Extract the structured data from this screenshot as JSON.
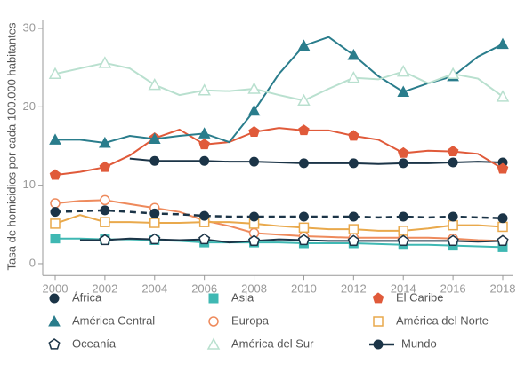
{
  "chart_data": {
    "type": "line",
    "y_label": "Tasa de homicidios por cada 100.000 habitantes",
    "x": [
      2000,
      2001,
      2002,
      2003,
      2004,
      2005,
      2006,
      2007,
      2008,
      2009,
      2010,
      2011,
      2012,
      2013,
      2014,
      2015,
      2016,
      2017,
      2018
    ],
    "xlim": [
      2000,
      2018
    ],
    "xticks": [
      2000,
      2002,
      2004,
      2006,
      2008,
      2010,
      2012,
      2014,
      2016,
      2018
    ],
    "ylim": [
      -1.5,
      30.5
    ],
    "yticks": [
      0,
      10,
      20,
      30
    ],
    "series": [
      {
        "name": "África",
        "color": "#1b3447",
        "marker": "circle",
        "filled": true,
        "values": [
          null,
          null,
          null,
          13.4,
          13.1,
          13.1,
          13.1,
          13.0,
          13.0,
          12.9,
          12.8,
          12.8,
          12.8,
          12.7,
          12.8,
          12.8,
          12.9,
          13.0,
          12.9
        ]
      },
      {
        "name": "Asia",
        "color": "#3fb8b3",
        "marker": "square",
        "filled": true,
        "values": [
          3.2,
          3.2,
          3.1,
          3.1,
          3.0,
          2.9,
          2.7,
          2.7,
          2.7,
          2.7,
          2.6,
          2.6,
          2.6,
          2.5,
          2.4,
          2.4,
          2.3,
          2.2,
          2.1
        ]
      },
      {
        "name": "El Caribe",
        "color": "#e05a3a",
        "marker": "pentagon",
        "filled": true,
        "values": [
          11.3,
          11.7,
          12.3,
          13.8,
          16.0,
          17.1,
          15.2,
          15.5,
          16.8,
          17.3,
          17.0,
          17.0,
          16.3,
          15.8,
          14.1,
          14.4,
          14.3,
          14.0,
          12.1
        ]
      },
      {
        "name": "América Central",
        "color": "#2a7d8c",
        "marker": "triangle",
        "filled": true,
        "values": [
          15.8,
          15.8,
          15.4,
          16.3,
          15.9,
          16.3,
          16.6,
          15.5,
          19.5,
          24.2,
          27.8,
          28.9,
          26.6,
          23.9,
          21.9,
          23.0,
          23.9,
          26.4,
          28.0
        ]
      },
      {
        "name": "Europa",
        "color": "#ee8a5c",
        "marker": "circle",
        "filled": false,
        "values": [
          7.7,
          8.0,
          8.1,
          7.6,
          7.1,
          6.6,
          5.5,
          4.8,
          3.9,
          3.7,
          3.5,
          3.4,
          3.3,
          3.3,
          3.3,
          3.3,
          3.2,
          3.0,
          2.9
        ]
      },
      {
        "name": "América del Norte",
        "color": "#e9a94c",
        "marker": "square",
        "filled": false,
        "values": [
          5.1,
          6.2,
          5.3,
          5.3,
          5.2,
          5.2,
          5.3,
          5.3,
          5.1,
          4.8,
          4.6,
          4.4,
          4.4,
          4.2,
          4.2,
          4.5,
          4.9,
          4.9,
          4.7
        ]
      },
      {
        "name": "Oceanía",
        "color": "#1b3447",
        "marker": "pentagon",
        "filled": false,
        "values": [
          null,
          3.0,
          3.0,
          3.2,
          3.1,
          3.0,
          3.1,
          2.7,
          2.9,
          3.1,
          3.0,
          2.9,
          2.9,
          2.9,
          2.9,
          2.9,
          2.9,
          2.8,
          2.9
        ]
      },
      {
        "name": "América del Sur",
        "color": "#b9e0cf",
        "marker": "triangle",
        "filled": false,
        "values": [
          24.2,
          24.9,
          25.6,
          24.9,
          22.8,
          21.5,
          22.1,
          22.0,
          22.3,
          21.5,
          20.8,
          22.3,
          23.7,
          23.5,
          24.5,
          23.0,
          24.2,
          23.6,
          21.3
        ]
      },
      {
        "name": "Mundo",
        "color": "#1b3447",
        "marker": "circle",
        "filled": true,
        "dashed": true,
        "values": [
          6.6,
          6.7,
          6.8,
          6.6,
          6.4,
          6.3,
          6.1,
          6.0,
          6.0,
          6.0,
          6.0,
          6.0,
          6.0,
          5.9,
          6.0,
          5.9,
          6.0,
          5.9,
          5.8
        ]
      }
    ]
  }
}
